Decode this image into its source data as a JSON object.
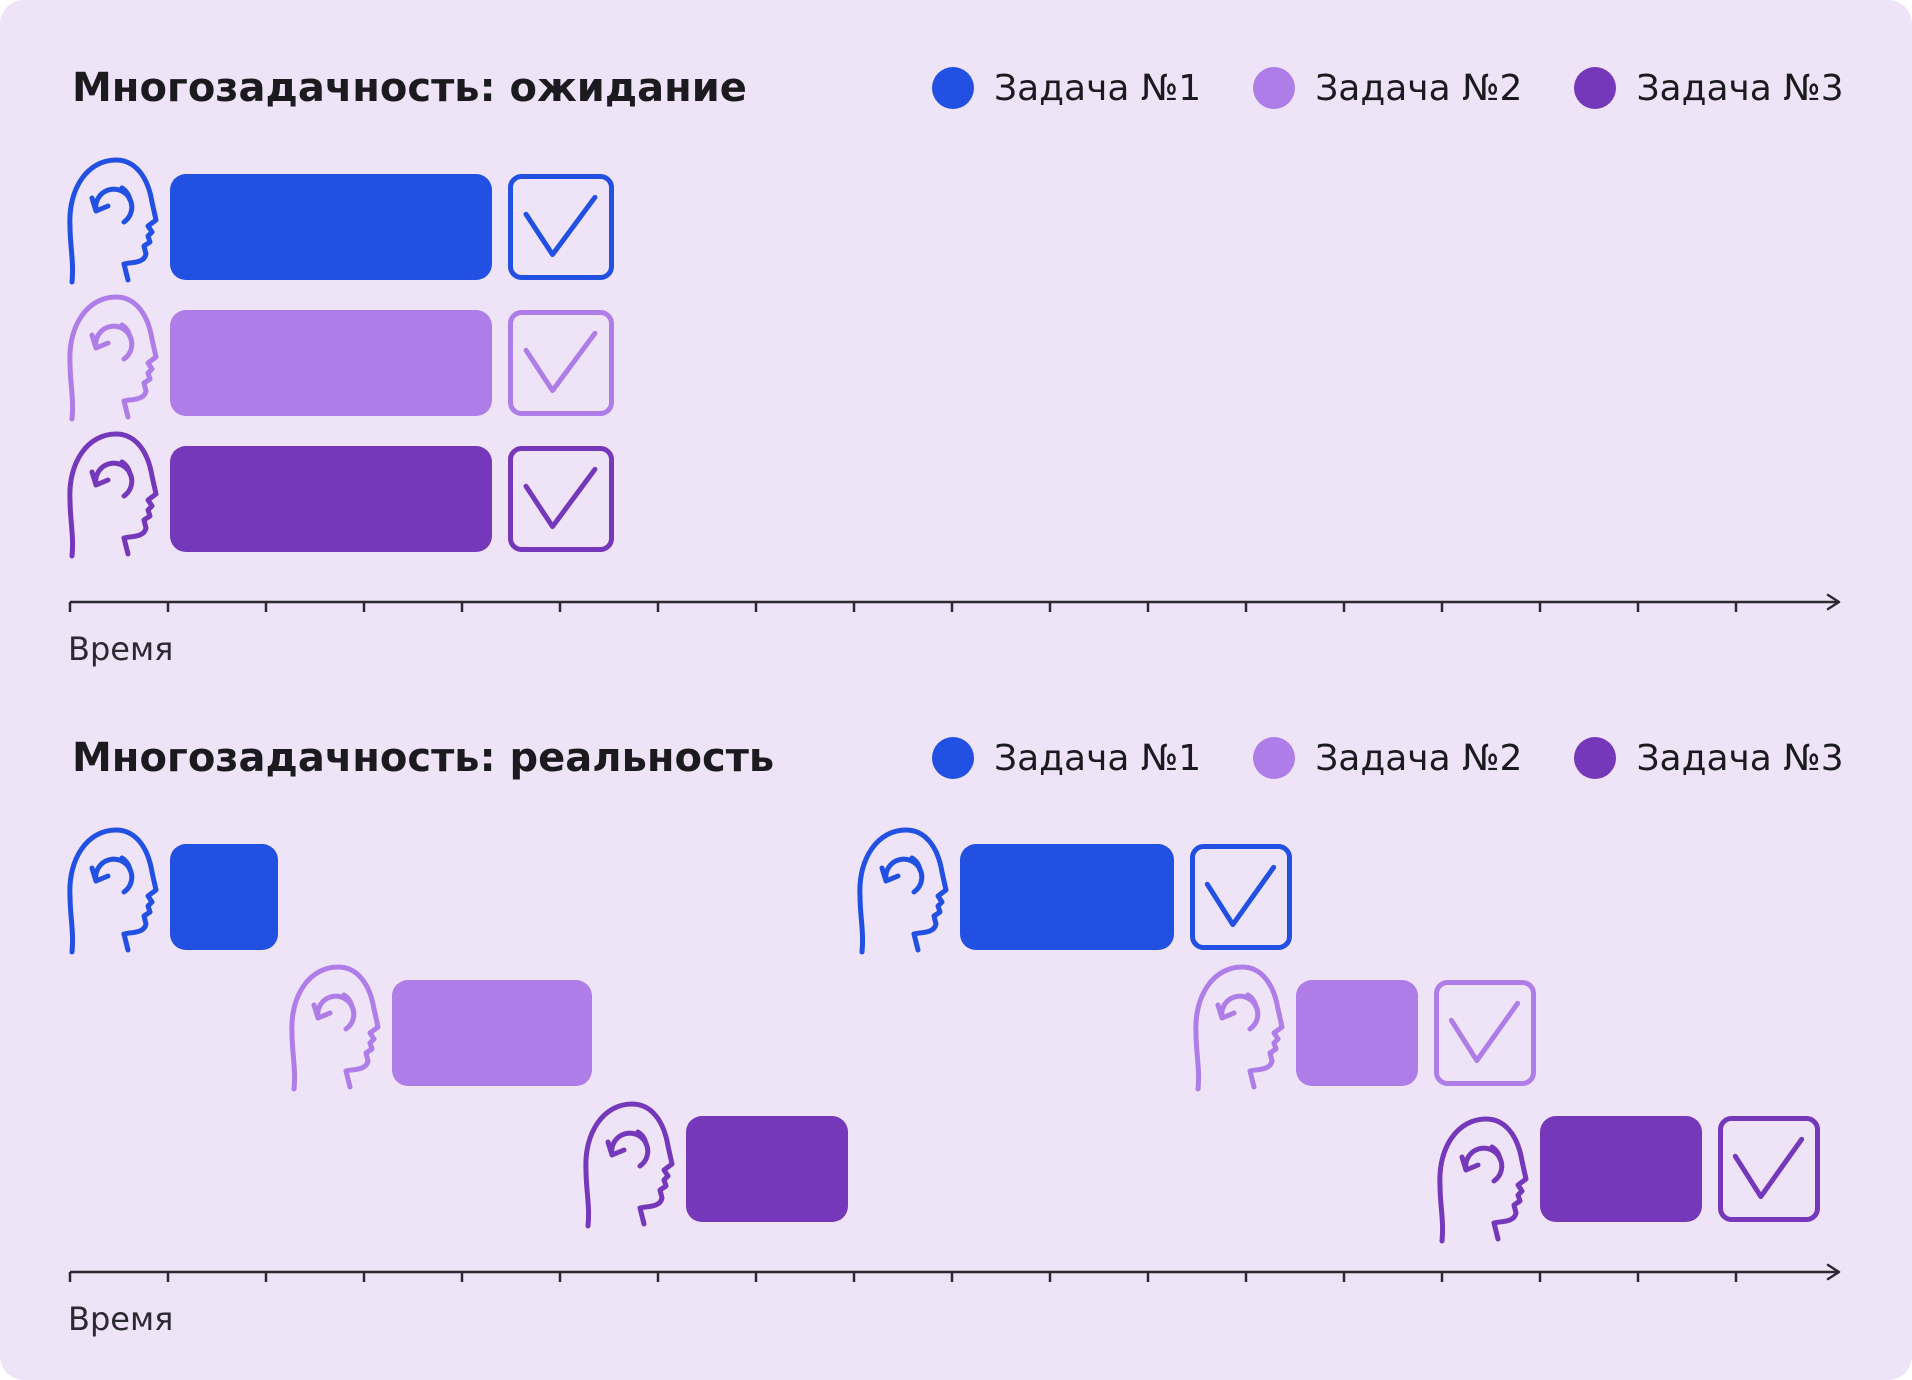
{
  "colors": {
    "task1": "#2150e3",
    "task2": "#af7de8",
    "task3": "#7538ba",
    "axis": "#2a2a30",
    "background": "#efe3f8"
  },
  "icons": {
    "person": "head-with-rotation-icon",
    "done": "checkmark-box-icon"
  },
  "panels": [
    {
      "title": "Многозадачность: ожидание",
      "legend": [
        {
          "label": "Задача №1"
        },
        {
          "label": "Задача №2"
        },
        {
          "label": "Задача №3"
        }
      ],
      "axis_label": "Время",
      "tasks": [
        {
          "task": 1,
          "segments": [
            {
              "done": true
            }
          ]
        },
        {
          "task": 2,
          "segments": [
            {
              "done": true
            }
          ]
        },
        {
          "task": 3,
          "segments": [
            {
              "done": true
            }
          ]
        }
      ]
    },
    {
      "title": "Многозадачность: реальность",
      "legend": [
        {
          "label": "Задача №1"
        },
        {
          "label": "Задача №2"
        },
        {
          "label": "Задача №3"
        }
      ],
      "axis_label": "Время",
      "tasks": [
        {
          "task": 1,
          "segments": [
            {
              "done": false
            },
            {
              "done": true
            }
          ]
        },
        {
          "task": 2,
          "segments": [
            {
              "done": false
            },
            {
              "done": true
            }
          ]
        },
        {
          "task": 3,
          "segments": [
            {
              "done": false
            },
            {
              "done": true
            }
          ]
        }
      ]
    }
  ]
}
